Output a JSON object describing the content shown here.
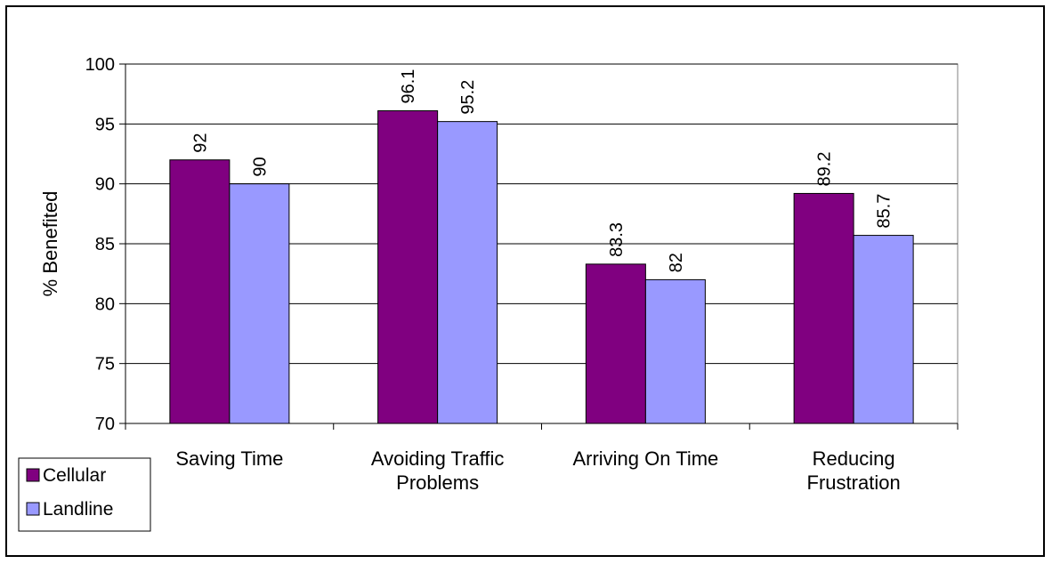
{
  "chart_data": {
    "type": "bar",
    "title": "",
    "xlabel": "",
    "ylabel": "% Benefited",
    "ylim": [
      70,
      100
    ],
    "yticks": [
      70,
      75,
      80,
      85,
      90,
      95,
      100
    ],
    "grid": true,
    "legend_position": "bottom-left",
    "categories": [
      [
        "Saving Time"
      ],
      [
        "Avoiding Traffic",
        "Problems"
      ],
      [
        "Arriving On Time"
      ],
      [
        "Reducing",
        "Frustration"
      ]
    ],
    "series": [
      {
        "name": "Cellular",
        "color": "#800080",
        "values": [
          92,
          96.1,
          83.3,
          89.2
        ]
      },
      {
        "name": "Landline",
        "color": "#9999FF",
        "values": [
          90,
          95.2,
          82,
          85.7
        ]
      }
    ],
    "data_labels": [
      [
        "92",
        "96.1",
        "83.3",
        "89.2"
      ],
      [
        "90",
        "95.2",
        "82",
        "85.7"
      ]
    ]
  }
}
